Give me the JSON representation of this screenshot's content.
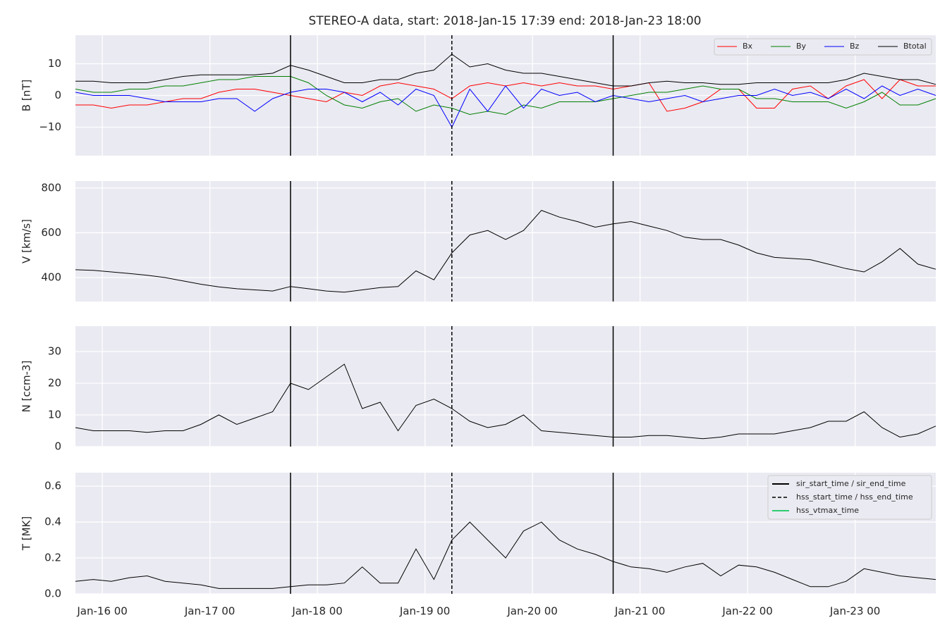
{
  "title": "STEREO-A data, start: 2018-Jan-15 17:39  end: 2018-Jan-23 18:00",
  "vlines": [
    {
      "name": "sir_start_time / sir_end_time",
      "color": "#000000",
      "style": "solid",
      "x": [
        "Jan-17 18",
        "Jan-20 18"
      ]
    },
    {
      "name": "hss_start_time / hss_end_time",
      "color": "#000000",
      "style": "dashed",
      "x": [
        "Jan-19 06"
      ]
    },
    {
      "name": "hss_vtmax_time",
      "color": "#2ecc71",
      "style": "solid",
      "x": []
    }
  ],
  "chart_data": [
    {
      "type": "line",
      "ylabel": "B [nT]",
      "legend": "upper right",
      "legend_columns": 4,
      "grid": true,
      "x": [
        "Jan-15 18",
        "Jan-15 22",
        "Jan-16 02",
        "Jan-16 06",
        "Jan-16 10",
        "Jan-16 14",
        "Jan-16 18",
        "Jan-16 22",
        "Jan-17 02",
        "Jan-17 06",
        "Jan-17 10",
        "Jan-17 14",
        "Jan-17 18",
        "Jan-17 22",
        "Jan-18 02",
        "Jan-18 06",
        "Jan-18 10",
        "Jan-18 14",
        "Jan-18 18",
        "Jan-18 22",
        "Jan-19 02",
        "Jan-19 06",
        "Jan-19 10",
        "Jan-19 14",
        "Jan-19 18",
        "Jan-19 22",
        "Jan-20 02",
        "Jan-20 06",
        "Jan-20 10",
        "Jan-20 14",
        "Jan-20 18",
        "Jan-20 22",
        "Jan-21 02",
        "Jan-21 06",
        "Jan-21 10",
        "Jan-21 14",
        "Jan-21 18",
        "Jan-21 22",
        "Jan-22 02",
        "Jan-22 06",
        "Jan-22 10",
        "Jan-22 14",
        "Jan-22 18",
        "Jan-22 22",
        "Jan-23 02",
        "Jan-23 06",
        "Jan-23 10",
        "Jan-23 14",
        "Jan-23 18"
      ],
      "xlim": [
        "Jan-15 18",
        "Jan-23 18"
      ],
      "xticks": [
        "Jan-16 00",
        "Jan-17 00",
        "Jan-18 00",
        "Jan-19 00",
        "Jan-20 00",
        "Jan-21 00",
        "Jan-22 00",
        "Jan-23 00"
      ],
      "ylim": [
        -19,
        19
      ],
      "yticks": [
        {
          "value": -10,
          "label": "−10"
        },
        0,
        10
      ],
      "series": [
        {
          "name": "Bx",
          "color": "#ff0000",
          "values": [
            -3,
            -3,
            -4,
            -3,
            -3,
            -2,
            -1,
            -1,
            1,
            2,
            2,
            1,
            0,
            -1,
            -2,
            1,
            0,
            3,
            4,
            3,
            2,
            -1,
            3,
            4,
            3,
            4,
            3,
            4,
            3,
            3,
            2,
            3,
            4,
            -5,
            -4,
            -2,
            2,
            2,
            -4,
            -4,
            2,
            3,
            -1,
            3,
            5,
            -1,
            5,
            3,
            3
          ]
        },
        {
          "name": "By",
          "color": "#008000",
          "values": [
            2,
            1,
            1,
            2,
            2,
            3,
            3,
            4,
            5,
            5,
            6,
            6,
            6,
            4,
            0,
            -3,
            -4,
            -2,
            -1,
            -5,
            -3,
            -4,
            -6,
            -5,
            -6,
            -3,
            -4,
            -2,
            -2,
            -2,
            -1,
            0,
            1,
            1,
            2,
            3,
            2,
            2,
            -1,
            -1,
            -2,
            -2,
            -2,
            -4,
            -2,
            1,
            -3,
            -3,
            -1
          ]
        },
        {
          "name": "Bz",
          "color": "#0000ff",
          "values": [
            1,
            0,
            0,
            0,
            -1,
            -2,
            -2,
            -2,
            -1,
            -1,
            -5,
            -1,
            1,
            2,
            2,
            1,
            -2,
            1,
            -3,
            2,
            0,
            -10,
            2,
            -5,
            3,
            -4,
            2,
            0,
            1,
            -2,
            0,
            -1,
            -2,
            -1,
            0,
            -2,
            -1,
            0,
            0,
            2,
            0,
            1,
            -1,
            2,
            -1,
            3,
            0,
            2,
            0
          ]
        },
        {
          "name": "Btotal",
          "color": "#000000",
          "values": [
            4.5,
            4.5,
            4,
            4,
            4,
            5,
            6,
            6.5,
            6.5,
            6.5,
            6.5,
            7,
            9.5,
            8,
            6,
            4,
            4,
            5,
            5,
            7,
            8,
            13,
            9,
            10,
            8,
            7,
            7,
            6,
            5,
            4,
            3,
            3,
            4,
            4.5,
            4,
            4,
            3.5,
            3.5,
            4,
            4,
            4,
            4,
            4,
            5,
            7,
            6,
            5,
            5,
            3.5
          ]
        }
      ]
    },
    {
      "type": "line",
      "ylabel": "V [km/s]",
      "grid": true,
      "color": "#000000",
      "x": [
        "Jan-15 18",
        "Jan-15 22",
        "Jan-16 02",
        "Jan-16 06",
        "Jan-16 10",
        "Jan-16 14",
        "Jan-16 18",
        "Jan-16 22",
        "Jan-17 02",
        "Jan-17 06",
        "Jan-17 10",
        "Jan-17 14",
        "Jan-17 18",
        "Jan-17 22",
        "Jan-18 02",
        "Jan-18 06",
        "Jan-18 10",
        "Jan-18 14",
        "Jan-18 18",
        "Jan-18 22",
        "Jan-19 02",
        "Jan-19 06",
        "Jan-19 10",
        "Jan-19 14",
        "Jan-19 18",
        "Jan-19 22",
        "Jan-20 02",
        "Jan-20 06",
        "Jan-20 10",
        "Jan-20 14",
        "Jan-20 18",
        "Jan-20 22",
        "Jan-21 02",
        "Jan-21 06",
        "Jan-21 10",
        "Jan-21 14",
        "Jan-21 18",
        "Jan-21 22",
        "Jan-22 02",
        "Jan-22 06",
        "Jan-22 10",
        "Jan-22 14",
        "Jan-22 18",
        "Jan-22 22",
        "Jan-23 02",
        "Jan-23 06",
        "Jan-23 10",
        "Jan-23 14",
        "Jan-23 18"
      ],
      "xlim": [
        "Jan-15 18",
        "Jan-23 18"
      ],
      "xticks": [
        "Jan-16 00",
        "Jan-17 00",
        "Jan-18 00",
        "Jan-19 00",
        "Jan-20 00",
        "Jan-21 00",
        "Jan-22 00",
        "Jan-23 00"
      ],
      "ylim": [
        293,
        831
      ],
      "yticks": [
        400,
        600,
        800
      ],
      "values": [
        435,
        432,
        425,
        418,
        410,
        400,
        385,
        370,
        358,
        350,
        345,
        340,
        360,
        350,
        340,
        335,
        345,
        355,
        360,
        430,
        390,
        510,
        590,
        610,
        570,
        610,
        700,
        670,
        650,
        625,
        640,
        650,
        630,
        610,
        580,
        570,
        570,
        545,
        510,
        490,
        485,
        480,
        460,
        440,
        425,
        470,
        530,
        460,
        437
      ]
    },
    {
      "type": "line",
      "ylabel": "N [ccm-3]",
      "grid": true,
      "color": "#000000",
      "x": [
        "Jan-15 18",
        "Jan-15 22",
        "Jan-16 02",
        "Jan-16 06",
        "Jan-16 10",
        "Jan-16 14",
        "Jan-16 18",
        "Jan-16 22",
        "Jan-17 02",
        "Jan-17 06",
        "Jan-17 10",
        "Jan-17 14",
        "Jan-17 18",
        "Jan-17 22",
        "Jan-18 02",
        "Jan-18 06",
        "Jan-18 10",
        "Jan-18 14",
        "Jan-18 18",
        "Jan-18 22",
        "Jan-19 02",
        "Jan-19 06",
        "Jan-19 10",
        "Jan-19 14",
        "Jan-19 18",
        "Jan-19 22",
        "Jan-20 02",
        "Jan-20 06",
        "Jan-20 10",
        "Jan-20 14",
        "Jan-20 18",
        "Jan-20 22",
        "Jan-21 02",
        "Jan-21 06",
        "Jan-21 10",
        "Jan-21 14",
        "Jan-21 18",
        "Jan-21 22",
        "Jan-22 02",
        "Jan-22 06",
        "Jan-22 10",
        "Jan-22 14",
        "Jan-22 18",
        "Jan-22 22",
        "Jan-23 02",
        "Jan-23 06",
        "Jan-23 10",
        "Jan-23 14",
        "Jan-23 18"
      ],
      "xlim": [
        "Jan-15 18",
        "Jan-23 18"
      ],
      "xticks": [
        "Jan-16 00",
        "Jan-17 00",
        "Jan-18 00",
        "Jan-19 00",
        "Jan-20 00",
        "Jan-21 00",
        "Jan-22 00",
        "Jan-23 00"
      ],
      "ylim": [
        0,
        38
      ],
      "yticks": [
        0,
        10,
        20,
        30
      ],
      "values": [
        6,
        5,
        5,
        5,
        4.5,
        5,
        5,
        7,
        10,
        7,
        9,
        11,
        20,
        18,
        22,
        26,
        12,
        14,
        5,
        13,
        15,
        12,
        8,
        6,
        7,
        10,
        5,
        4.5,
        4,
        3.5,
        3,
        3,
        3.5,
        3.5,
        3,
        2.5,
        3,
        4,
        4,
        4,
        5,
        6,
        8,
        8,
        11,
        6,
        3,
        4,
        6.5
      ]
    },
    {
      "type": "line",
      "ylabel": "T [MK]",
      "grid": true,
      "color": "#000000",
      "legend": "upper right",
      "x": [
        "Jan-15 18",
        "Jan-15 22",
        "Jan-16 02",
        "Jan-16 06",
        "Jan-16 10",
        "Jan-16 14",
        "Jan-16 18",
        "Jan-16 22",
        "Jan-17 02",
        "Jan-17 06",
        "Jan-17 10",
        "Jan-17 14",
        "Jan-17 18",
        "Jan-17 22",
        "Jan-18 02",
        "Jan-18 06",
        "Jan-18 10",
        "Jan-18 14",
        "Jan-18 18",
        "Jan-18 22",
        "Jan-19 02",
        "Jan-19 06",
        "Jan-19 10",
        "Jan-19 14",
        "Jan-19 18",
        "Jan-19 22",
        "Jan-20 02",
        "Jan-20 06",
        "Jan-20 10",
        "Jan-20 14",
        "Jan-20 18",
        "Jan-20 22",
        "Jan-21 02",
        "Jan-21 06",
        "Jan-21 10",
        "Jan-21 14",
        "Jan-21 18",
        "Jan-21 22",
        "Jan-22 02",
        "Jan-22 06",
        "Jan-22 10",
        "Jan-22 14",
        "Jan-22 18",
        "Jan-22 22",
        "Jan-23 02",
        "Jan-23 06",
        "Jan-23 10",
        "Jan-23 14",
        "Jan-23 18"
      ],
      "xlim": [
        "Jan-15 18",
        "Jan-23 18"
      ],
      "xticks": [
        "Jan-16 00",
        "Jan-17 00",
        "Jan-18 00",
        "Jan-19 00",
        "Jan-20 00",
        "Jan-21 00",
        "Jan-22 00",
        "Jan-23 00"
      ],
      "ylim": [
        0,
        0.675
      ],
      "yticks": [
        {
          "value": 0,
          "label": "0.0"
        },
        0.2,
        0.4,
        0.6
      ],
      "values": [
        0.07,
        0.08,
        0.07,
        0.09,
        0.1,
        0.07,
        0.06,
        0.05,
        0.03,
        0.03,
        0.03,
        0.03,
        0.04,
        0.05,
        0.05,
        0.06,
        0.15,
        0.06,
        0.06,
        0.25,
        0.08,
        0.3,
        0.4,
        0.3,
        0.2,
        0.35,
        0.4,
        0.3,
        0.25,
        0.22,
        0.18,
        0.15,
        0.14,
        0.12,
        0.15,
        0.17,
        0.1,
        0.16,
        0.15,
        0.12,
        0.08,
        0.04,
        0.04,
        0.07,
        0.14,
        0.12,
        0.1,
        0.09,
        0.08
      ]
    }
  ]
}
